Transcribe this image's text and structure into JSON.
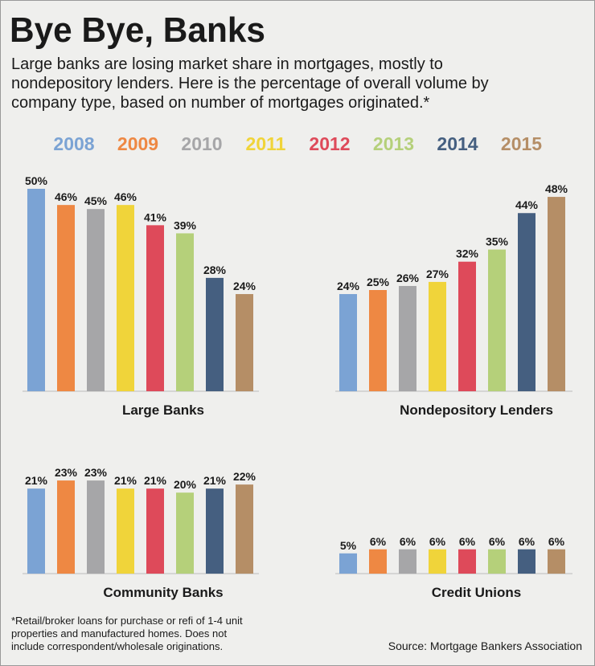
{
  "title": "Bye Bye, Banks",
  "subtitle": [
    "Large banks are losing market share in mortgages, mostly to",
    "nondepository lenders. Here is the percentage of overall volume by",
    "company type, based on number of mortgages originated.*"
  ],
  "legend": {
    "items": [
      "2008",
      "2009",
      "2010",
      "2011",
      "2012",
      "2013",
      "2014",
      "2015"
    ],
    "colors": [
      "#7ba3d4",
      "#ee8843",
      "#a6a6a8",
      "#f0d43a",
      "#de4a5a",
      "#b5d07a",
      "#455f80",
      "#b58e66"
    ]
  },
  "chart_data": [
    {
      "type": "bar",
      "title": "Large Banks",
      "values": [
        50,
        46,
        45,
        46,
        41,
        39,
        28,
        24
      ],
      "value_labels": [
        "50%",
        "46%",
        "45%",
        "46%",
        "41%",
        "39%",
        "28%",
        "24%"
      ]
    },
    {
      "type": "bar",
      "title": "Nondepository Lenders",
      "values": [
        24,
        25,
        26,
        27,
        32,
        35,
        44,
        48
      ],
      "value_labels": [
        "24%",
        "25%",
        "26%",
        "27%",
        "32%",
        "35%",
        "44%",
        "48%"
      ]
    },
    {
      "type": "bar",
      "title": "Community Banks",
      "values": [
        21,
        23,
        23,
        21,
        21,
        20,
        21,
        22
      ],
      "value_labels": [
        "21%",
        "23%",
        "23%",
        "21%",
        "21%",
        "20%",
        "21%",
        "22%"
      ]
    },
    {
      "type": "bar",
      "title": "Credit Unions",
      "values": [
        5,
        6,
        6,
        6,
        6,
        6,
        6,
        6
      ],
      "value_labels": [
        "5%",
        "6%",
        "6%",
        "6%",
        "6%",
        "6%",
        "6%",
        "6%"
      ]
    }
  ],
  "footnote": [
    "*Retail/broker loans for purchase or refi of 1-4 unit",
    "properties and manufactured homes. Does not",
    "include correspondent/wholesale originations."
  ],
  "source": "Source: Mortgage Bankers Association"
}
